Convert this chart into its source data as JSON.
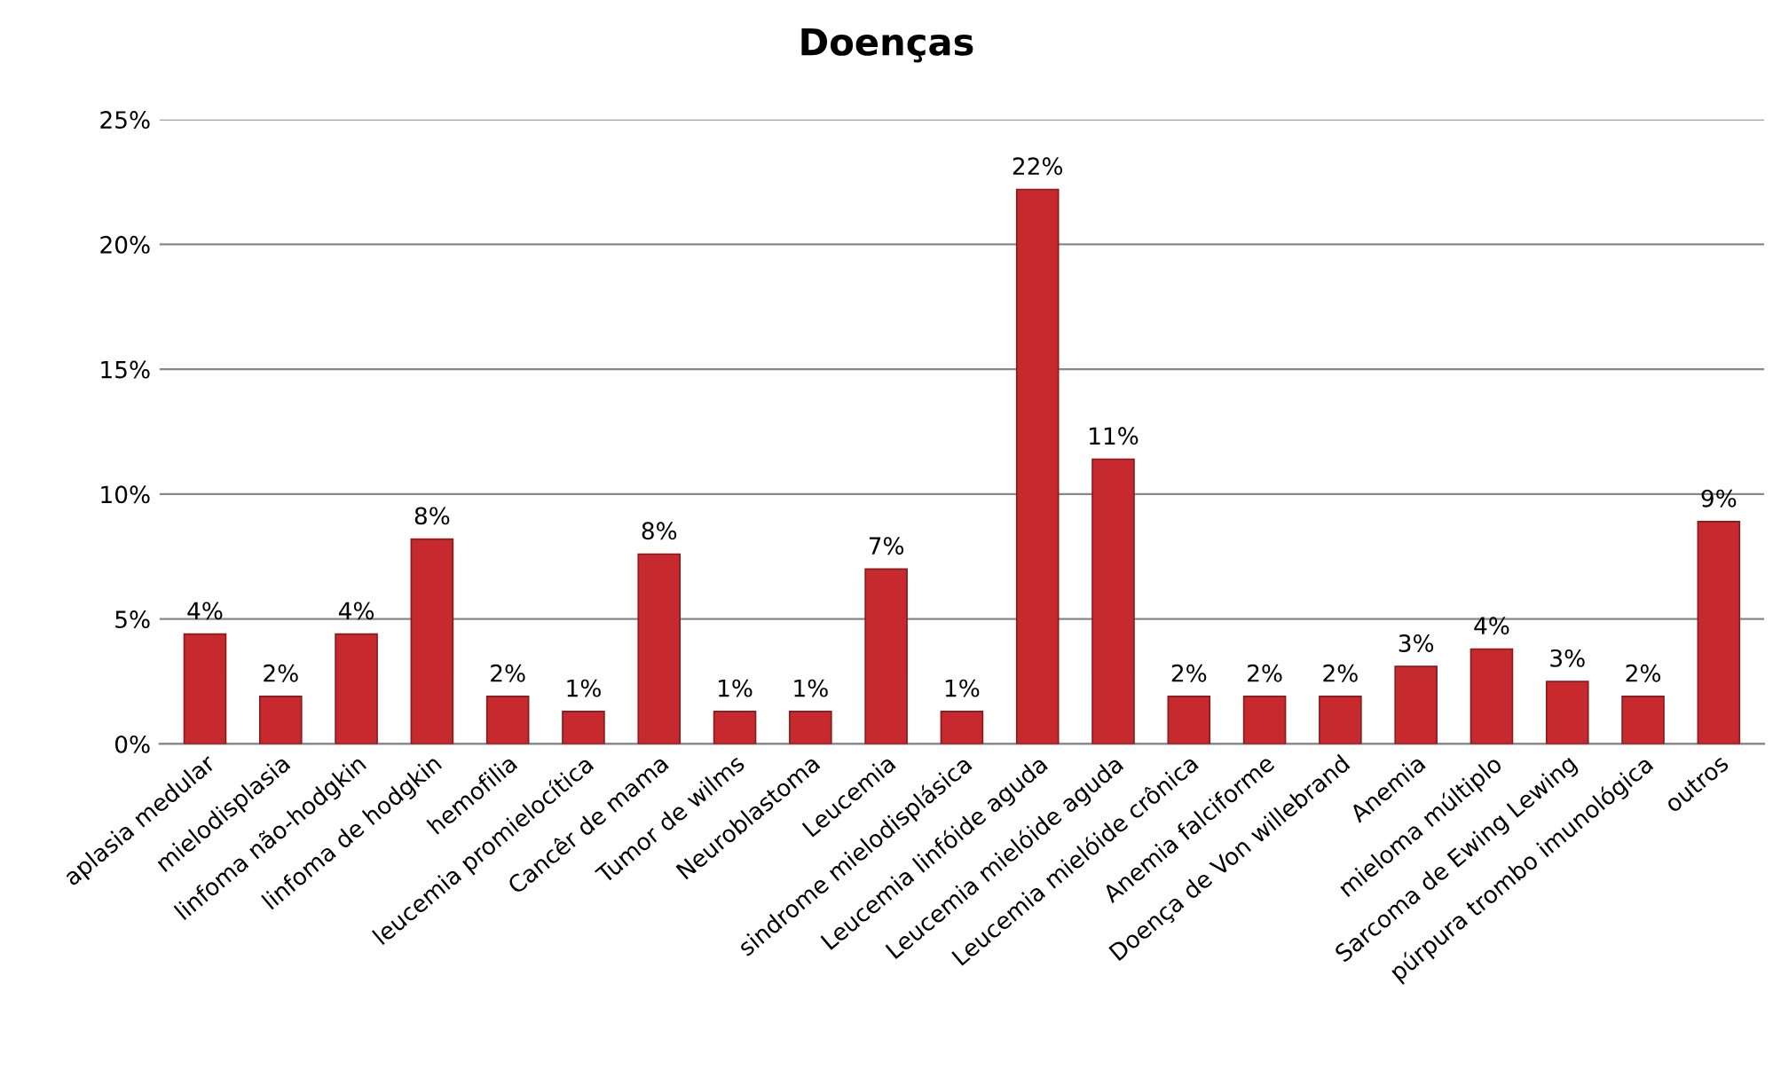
{
  "chart_data": {
    "type": "bar",
    "title": "Doenças",
    "categories": [
      "aplasia medular",
      "mielodisplasia",
      "linfoma não-hodgkin",
      "linfoma de hodgkin",
      "hemofilia",
      "leucemia promielocítica",
      "Cancêr de mama",
      "Tumor de wilms",
      "Neuroblastoma",
      "Leucemia",
      "sindrome mielodisplásica",
      "Leucemia linfóide aguda",
      "Leucemia mielóide aguda",
      "Leucemia mielóide crônica",
      "Anemia falciforme",
      "Doença de Von willebrand",
      "Anemia",
      "mieloma múltiplo",
      "Sarcoma de Ewing Lewing",
      "púrpura trombo imunológica",
      "outros"
    ],
    "values": [
      4.4,
      1.9,
      4.4,
      8.2,
      1.9,
      1.3,
      7.6,
      1.3,
      1.3,
      7.0,
      1.3,
      22.2,
      11.4,
      1.9,
      1.9,
      1.9,
      3.1,
      3.8,
      2.5,
      1.9,
      8.9
    ],
    "value_labels": [
      "4%",
      "2%",
      "4%",
      "8%",
      "2%",
      "1%",
      "8%",
      "1%",
      "1%",
      "7%",
      "1%",
      "22%",
      "11%",
      "2%",
      "2%",
      "2%",
      "3%",
      "4%",
      "3%",
      "2%",
      "9%"
    ],
    "color": "#c62a2e",
    "ylim": [
      0,
      25
    ],
    "yticks": [
      {
        "value": 0,
        "label": "0%"
      },
      {
        "value": 5,
        "label": "5%"
      },
      {
        "value": 10,
        "label": "10%"
      },
      {
        "value": 15,
        "label": "15%"
      },
      {
        "value": 20,
        "label": "20%"
      },
      {
        "value": 25,
        "label": "25%"
      }
    ],
    "grid": "y",
    "legend": false
  }
}
